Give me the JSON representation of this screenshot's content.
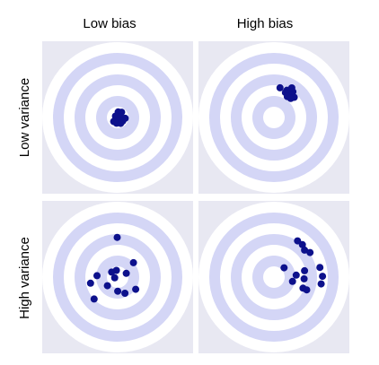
{
  "columns": {
    "low_bias": "Low bias",
    "high_bias": "High bias"
  },
  "rows": {
    "low_variance": "Low variance",
    "high_variance": "High variance"
  },
  "colors": {
    "panel_background": "#e8e8f2",
    "ring_light": "#d4d6f6",
    "ring_white": "#ffffff",
    "dot": "#0d118c"
  },
  "target": {
    "ring_count": 7
  },
  "panels": [
    {
      "id": "low-bias-low-variance",
      "column": "Low bias",
      "row": "Low variance",
      "dots": [
        [
          0.6,
          -6.2
        ],
        [
          4.4,
          -5.9
        ],
        [
          -2.4,
          -1.6
        ],
        [
          3.2,
          -1.0
        ],
        [
          8.4,
          0.9
        ],
        [
          -2.8,
          2.9
        ],
        [
          1.0,
          3.4
        ],
        [
          5.6,
          4.1
        ],
        [
          -4.4,
          4.5
        ],
        [
          -1.2,
          6.4
        ],
        [
          3.4,
          6.6
        ]
      ]
    },
    {
      "id": "high-bias-low-variance",
      "column": "High bias",
      "row": "Low variance",
      "dots": [
        [
          6.8,
          -33.1
        ],
        [
          19.9,
          -33.0
        ],
        [
          14.5,
          -30.4
        ],
        [
          17.1,
          -29.0
        ],
        [
          21.1,
          -28.7
        ],
        [
          12.8,
          -27.8
        ],
        [
          15.7,
          -25.9
        ],
        [
          19.0,
          -24.8
        ],
        [
          14.9,
          -23.3
        ],
        [
          22.6,
          -22.5
        ],
        [
          18.7,
          -21.2
        ]
      ]
    },
    {
      "id": "low-bias-high-variance",
      "column": "Low bias",
      "row": "High variance",
      "dots": [
        [
          -0.5,
          -44.3
        ],
        [
          17.6,
          -16.1
        ],
        [
          -1.4,
          -7.5
        ],
        [
          -6.7,
          -5.6
        ],
        [
          9.6,
          -4.2
        ],
        [
          -23.0,
          -1.6
        ],
        [
          -3.3,
          0.8
        ],
        [
          -30.2,
          6.8
        ],
        [
          -11.4,
          9.6
        ],
        [
          20.1,
          13.6
        ],
        [
          0.1,
          15.7
        ],
        [
          8.1,
          18.0
        ],
        [
          -26.2,
          24.4
        ]
      ]
    },
    {
      "id": "high-bias-high-variance",
      "column": "High bias",
      "row": "High variance",
      "dots": [
        [
          26.3,
          -40.4
        ],
        [
          31.7,
          -36.2
        ],
        [
          34.1,
          -30.1
        ],
        [
          40.2,
          -27.4
        ],
        [
          11.3,
          -10.4
        ],
        [
          51.2,
          -10.8
        ],
        [
          34.1,
          -7.1
        ],
        [
          24.8,
          -2.2
        ],
        [
          54.1,
          -0.9
        ],
        [
          33.6,
          1.9
        ],
        [
          20.7,
          4.8
        ],
        [
          52.6,
          7.6
        ],
        [
          32.4,
          12.3
        ],
        [
          36.5,
          14.2
        ]
      ]
    }
  ]
}
